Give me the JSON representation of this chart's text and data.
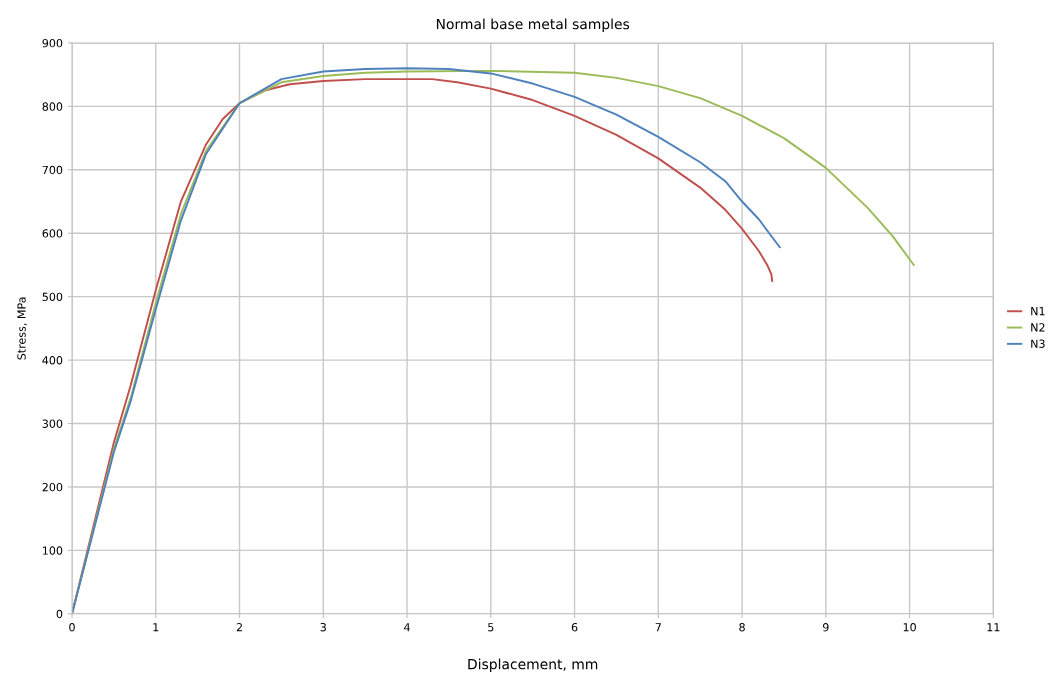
{
  "chart_data": {
    "type": "line",
    "title": "Normal base metal samples",
    "xlabel": "Displacement, mm",
    "ylabel": "Stress, MPa",
    "xlim": [
      0,
      11
    ],
    "xticks": [
      0,
      1,
      2,
      3,
      4,
      5,
      6,
      7,
      8,
      9,
      10,
      11
    ],
    "ylim": [
      0,
      900
    ],
    "yticks": [
      0,
      100,
      200,
      300,
      400,
      500,
      600,
      700,
      800,
      900
    ],
    "grid": true,
    "legend": "right",
    "marker": "none",
    "line_style": "solid",
    "series": [
      {
        "name": "N1",
        "color": "#c0504d",
        "x": [
          0,
          0.5,
          0.7,
          1,
          1.3,
          1.6,
          1.8,
          2,
          2.3,
          2.6,
          3,
          3.5,
          4,
          4.3,
          4.6,
          5,
          5.5,
          6,
          6.5,
          7,
          7.5,
          7.8,
          8,
          8.2,
          8.3,
          8.35,
          8.36
        ],
        "values": [
          0,
          270,
          360,
          510,
          650,
          740,
          780,
          805,
          825,
          835,
          840,
          843,
          843,
          843,
          838,
          828,
          810,
          785,
          755,
          718,
          672,
          637,
          607,
          572,
          550,
          535,
          525
        ]
      },
      {
        "name": "N2",
        "color": "#9bbb59",
        "x": [
          0,
          0.5,
          0.7,
          1,
          1.3,
          1.6,
          2,
          2.5,
          3,
          3.5,
          4,
          5,
          6,
          6.5,
          7,
          7.5,
          8,
          8.5,
          9,
          9.5,
          9.8,
          10.05
        ],
        "values": [
          0,
          260,
          340,
          490,
          630,
          730,
          805,
          838,
          848,
          853,
          855,
          856,
          853,
          845,
          832,
          813,
          785,
          750,
          703,
          640,
          595,
          550
        ]
      },
      {
        "name": "N3",
        "color": "#4f81bd",
        "x": [
          0,
          0.5,
          0.7,
          1,
          1.3,
          1.6,
          2,
          2.5,
          3,
          3.5,
          4,
          4.5,
          5,
          5.5,
          6,
          6.5,
          7,
          7.5,
          7.8,
          8,
          8.2,
          8.45
        ],
        "values": [
          0,
          255,
          335,
          480,
          620,
          725,
          805,
          843,
          855,
          859,
          860,
          859,
          852,
          836,
          815,
          787,
          752,
          712,
          682,
          650,
          622,
          578
        ]
      }
    ]
  }
}
